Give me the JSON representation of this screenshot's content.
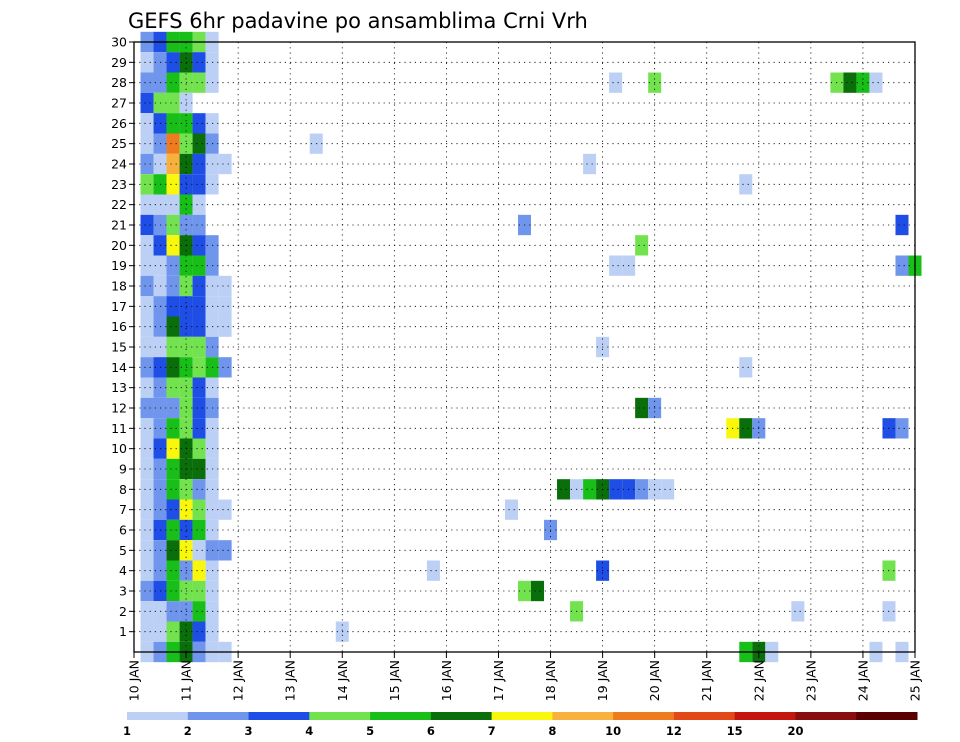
{
  "chart_data": {
    "type": "heatmap",
    "title": "GEFS 6hr padavine po ansamblima Crni Vrh",
    "x_tick_labels": [
      "10 JAN",
      "11 JAN",
      "12 JAN",
      "13 JAN",
      "14 JAN",
      "15 JAN",
      "16 JAN",
      "17 JAN",
      "18 JAN",
      "19 JAN",
      "20 JAN",
      "21 JAN",
      "22 JAN",
      "23 JAN",
      "24 JAN",
      "25 JAN"
    ],
    "y_tick_labels": [
      "1",
      "2",
      "3",
      "4",
      "5",
      "6",
      "7",
      "8",
      "9",
      "10",
      "11",
      "12",
      "13",
      "14",
      "15",
      "16",
      "17",
      "18",
      "19",
      "20",
      "21",
      "22",
      "23",
      "24",
      "25",
      "26",
      "27",
      "28",
      "29",
      "30"
    ],
    "xlim_days": [
      10,
      25
    ],
    "ylim_members": [
      0,
      30
    ],
    "time_step_hours": 6,
    "grid": true,
    "colorbar": {
      "levels": [
        "1",
        "2",
        "3",
        "4",
        "5",
        "6",
        "7",
        "8",
        "10",
        "12",
        "15",
        "20"
      ],
      "colors": [
        "#bcd0f6",
        "#6f96ec",
        "#1f4ee6",
        "#72e34f",
        "#19bf19",
        "#0a6e0a",
        "#f9f80c",
        "#f7b13c",
        "#ef7b1f",
        "#e24818",
        "#c4160e",
        "#8a0d0d",
        "#5a0000"
      ]
    },
    "cells": [
      [
        10.25,
        30,
        2
      ],
      [
        10.5,
        30,
        3
      ],
      [
        10.75,
        30,
        5
      ],
      [
        11,
        30,
        5
      ],
      [
        11.25,
        30,
        4
      ],
      [
        11.5,
        30,
        1
      ],
      [
        10.25,
        29,
        1
      ],
      [
        10.5,
        29,
        2
      ],
      [
        10.75,
        29,
        3
      ],
      [
        11,
        29,
        6
      ],
      [
        11.25,
        29,
        3
      ],
      [
        11.5,
        29,
        1
      ],
      [
        10.25,
        28,
        2
      ],
      [
        10.5,
        28,
        2
      ],
      [
        10.75,
        28,
        5
      ],
      [
        11,
        28,
        4
      ],
      [
        11.25,
        28,
        4
      ],
      [
        11.5,
        28,
        1
      ],
      [
        19.25,
        28,
        1
      ],
      [
        20.0,
        28,
        4
      ],
      [
        23.5,
        28,
        4
      ],
      [
        23.75,
        28,
        6
      ],
      [
        24.0,
        28,
        5
      ],
      [
        24.25,
        28,
        1
      ],
      [
        10.25,
        27,
        3
      ],
      [
        10.5,
        27,
        4
      ],
      [
        10.75,
        27,
        4
      ],
      [
        11,
        27,
        1
      ],
      [
        10.25,
        26,
        1
      ],
      [
        10.5,
        26,
        3
      ],
      [
        10.75,
        26,
        5
      ],
      [
        11,
        26,
        5
      ],
      [
        11.25,
        26,
        3
      ],
      [
        11.5,
        26,
        1
      ],
      [
        10.25,
        25,
        1
      ],
      [
        10.5,
        25,
        2
      ],
      [
        10.75,
        25,
        9
      ],
      [
        11,
        25,
        4
      ],
      [
        11.25,
        25,
        6
      ],
      [
        11.5,
        25,
        2
      ],
      [
        13.5,
        25,
        1
      ],
      [
        10.25,
        24,
        2
      ],
      [
        10.5,
        24,
        1
      ],
      [
        10.75,
        24,
        8
      ],
      [
        11,
        24,
        6
      ],
      [
        11.25,
        24,
        3
      ],
      [
        11.5,
        24,
        1
      ],
      [
        11.75,
        24,
        1
      ],
      [
        18.75,
        24,
        1
      ],
      [
        10.25,
        23,
        4
      ],
      [
        10.5,
        23,
        5
      ],
      [
        10.75,
        23,
        7
      ],
      [
        11,
        23,
        3
      ],
      [
        11.25,
        23,
        3
      ],
      [
        11.5,
        23,
        1
      ],
      [
        21.75,
        23,
        1
      ],
      [
        10.25,
        22,
        1
      ],
      [
        10.5,
        22,
        1
      ],
      [
        10.75,
        22,
        1
      ],
      [
        11,
        22,
        5
      ],
      [
        11.25,
        22,
        1
      ],
      [
        10.25,
        21,
        3
      ],
      [
        10.5,
        21,
        2
      ],
      [
        10.75,
        21,
        4
      ],
      [
        11,
        21,
        2
      ],
      [
        11.25,
        21,
        2
      ],
      [
        17.5,
        21,
        2
      ],
      [
        24.75,
        21,
        3
      ],
      [
        10.25,
        20,
        1
      ],
      [
        10.5,
        20,
        3
      ],
      [
        10.75,
        20,
        7
      ],
      [
        11,
        20,
        6
      ],
      [
        11.25,
        20,
        3
      ],
      [
        11.5,
        20,
        2
      ],
      [
        19.75,
        20,
        4
      ],
      [
        10.25,
        19,
        1
      ],
      [
        10.5,
        19,
        1
      ],
      [
        10.75,
        19,
        2
      ],
      [
        11,
        19,
        5
      ],
      [
        11.25,
        19,
        5
      ],
      [
        11.5,
        19,
        2
      ],
      [
        19.25,
        19,
        1
      ],
      [
        19.5,
        19,
        1
      ],
      [
        24.75,
        19,
        2
      ],
      [
        25.0,
        19,
        5
      ],
      [
        10.25,
        18,
        2
      ],
      [
        10.5,
        18,
        1
      ],
      [
        10.75,
        18,
        2
      ],
      [
        11,
        18,
        4
      ],
      [
        11.25,
        18,
        3
      ],
      [
        11.5,
        18,
        1
      ],
      [
        11.75,
        18,
        1
      ],
      [
        10.25,
        17,
        1
      ],
      [
        10.5,
        17,
        2
      ],
      [
        10.75,
        17,
        3
      ],
      [
        11,
        17,
        3
      ],
      [
        11.25,
        17,
        3
      ],
      [
        11.5,
        17,
        1
      ],
      [
        11.75,
        17,
        1
      ],
      [
        10.25,
        16,
        1
      ],
      [
        10.5,
        16,
        2
      ],
      [
        10.75,
        16,
        6
      ],
      [
        11,
        16,
        3
      ],
      [
        11.25,
        16,
        3
      ],
      [
        11.5,
        16,
        1
      ],
      [
        11.75,
        16,
        1
      ],
      [
        10.25,
        15,
        1
      ],
      [
        10.5,
        15,
        1
      ],
      [
        10.75,
        15,
        4
      ],
      [
        11,
        15,
        4
      ],
      [
        11.25,
        15,
        4
      ],
      [
        11.5,
        15,
        2
      ],
      [
        19.0,
        15,
        1
      ],
      [
        10.25,
        14,
        2
      ],
      [
        10.5,
        14,
        3
      ],
      [
        10.75,
        14,
        6
      ],
      [
        11,
        14,
        5
      ],
      [
        11.25,
        14,
        4
      ],
      [
        11.5,
        14,
        5
      ],
      [
        11.75,
        14,
        2
      ],
      [
        21.75,
        14,
        1
      ],
      [
        10.25,
        13,
        1
      ],
      [
        10.5,
        13,
        2
      ],
      [
        10.75,
        13,
        4
      ],
      [
        11,
        13,
        4
      ],
      [
        11.25,
        13,
        3
      ],
      [
        11.5,
        13,
        1
      ],
      [
        10.25,
        12,
        2
      ],
      [
        10.5,
        12,
        2
      ],
      [
        10.75,
        12,
        2
      ],
      [
        11,
        12,
        4
      ],
      [
        11.25,
        12,
        3
      ],
      [
        11.5,
        12,
        2
      ],
      [
        10.25,
        11,
        1
      ],
      [
        10.5,
        11,
        2
      ],
      [
        10.75,
        11,
        5
      ],
      [
        11,
        11,
        4
      ],
      [
        11.25,
        11,
        3
      ],
      [
        11.5,
        11,
        1
      ],
      [
        19.75,
        12,
        6
      ],
      [
        20.0,
        12,
        2
      ],
      [
        21.5,
        11,
        7
      ],
      [
        21.75,
        11,
        6
      ],
      [
        22.0,
        11,
        2
      ],
      [
        24.5,
        11,
        3
      ],
      [
        24.75,
        11,
        2
      ],
      [
        10.25,
        10,
        1
      ],
      [
        10.5,
        10,
        3
      ],
      [
        10.75,
        10,
        7
      ],
      [
        11,
        10,
        6
      ],
      [
        11.25,
        10,
        4
      ],
      [
        11.5,
        10,
        1
      ],
      [
        10.25,
        9,
        1
      ],
      [
        10.5,
        9,
        2
      ],
      [
        10.75,
        9,
        5
      ],
      [
        11,
        9,
        6
      ],
      [
        11.25,
        9,
        6
      ],
      [
        11.5,
        9,
        1
      ],
      [
        10.25,
        8,
        1
      ],
      [
        10.5,
        8,
        2
      ],
      [
        10.75,
        8,
        5
      ],
      [
        11,
        8,
        4
      ],
      [
        11.25,
        8,
        2
      ],
      [
        11.5,
        8,
        1
      ],
      [
        10.25,
        7,
        1
      ],
      [
        10.5,
        7,
        2
      ],
      [
        10.75,
        7,
        3
      ],
      [
        11,
        7,
        7
      ],
      [
        11.25,
        7,
        4
      ],
      [
        11.5,
        7,
        1
      ],
      [
        11.75,
        7,
        1
      ],
      [
        17.25,
        7,
        1
      ],
      [
        10.25,
        6,
        1
      ],
      [
        10.5,
        6,
        3
      ],
      [
        10.75,
        6,
        5
      ],
      [
        11,
        6,
        3
      ],
      [
        11.25,
        6,
        5
      ],
      [
        11.5,
        6,
        1
      ],
      [
        18.0,
        6,
        2
      ],
      [
        10.25,
        5,
        1
      ],
      [
        10.5,
        5,
        2
      ],
      [
        10.75,
        5,
        6
      ],
      [
        11,
        5,
        7
      ],
      [
        11.25,
        5,
        1
      ],
      [
        11.5,
        5,
        2
      ],
      [
        11.75,
        5,
        2
      ],
      [
        10.25,
        4,
        1
      ],
      [
        10.5,
        4,
        2
      ],
      [
        10.75,
        4,
        5
      ],
      [
        11,
        4,
        2
      ],
      [
        11.25,
        4,
        7
      ],
      [
        11.5,
        4,
        1
      ],
      [
        15.75,
        4,
        1
      ],
      [
        19.0,
        4,
        3
      ],
      [
        24.5,
        4,
        4
      ],
      [
        10.25,
        3,
        2
      ],
      [
        10.5,
        3,
        3
      ],
      [
        10.75,
        3,
        5
      ],
      [
        11,
        3,
        4
      ],
      [
        11.25,
        3,
        4
      ],
      [
        11.5,
        3,
        1
      ],
      [
        17.5,
        3,
        4
      ],
      [
        17.75,
        3,
        6
      ],
      [
        10.25,
        2,
        1
      ],
      [
        10.5,
        2,
        1
      ],
      [
        10.75,
        2,
        2
      ],
      [
        11,
        2,
        2
      ],
      [
        11.25,
        2,
        5
      ],
      [
        11.5,
        2,
        1
      ],
      [
        18.5,
        2,
        4
      ],
      [
        22.75,
        2,
        1
      ],
      [
        24.5,
        2,
        1
      ],
      [
        10.25,
        1,
        1
      ],
      [
        10.5,
        1,
        1
      ],
      [
        10.75,
        1,
        4
      ],
      [
        11,
        1,
        6
      ],
      [
        11.25,
        1,
        3
      ],
      [
        11.5,
        1,
        1
      ],
      [
        14.0,
        1,
        1
      ],
      [
        10.25,
        0,
        1
      ],
      [
        10.5,
        0,
        2
      ],
      [
        10.75,
        0,
        5
      ],
      [
        11,
        0,
        6
      ],
      [
        11.25,
        0,
        2
      ],
      [
        11.5,
        0,
        1
      ],
      [
        11.75,
        0,
        1
      ],
      [
        21.75,
        0,
        5
      ],
      [
        22.0,
        0,
        6
      ],
      [
        22.25,
        0,
        1
      ],
      [
        24.25,
        0,
        1
      ],
      [
        24.75,
        0,
        1
      ],
      [
        18.25,
        8,
        6
      ],
      [
        18.5,
        8,
        1
      ],
      [
        18.75,
        8,
        5
      ],
      [
        19.0,
        8,
        6
      ],
      [
        19.25,
        8,
        3
      ],
      [
        19.5,
        8,
        3
      ],
      [
        19.75,
        8,
        2
      ],
      [
        20.0,
        8,
        1
      ],
      [
        20.25,
        8,
        1
      ]
    ]
  }
}
